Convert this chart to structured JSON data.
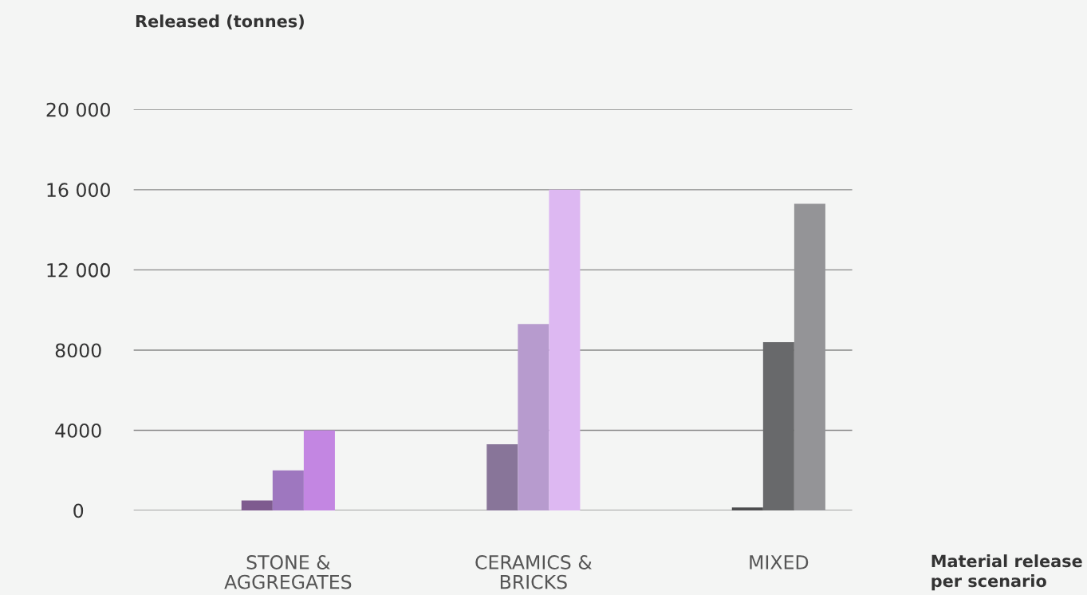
{
  "chart_data": {
    "type": "bar",
    "ylabel": "Released (tonnes)",
    "xlabel": "Material release\nper scenario",
    "categories": [
      "STONE &\nAGGREGATES",
      "CERAMICS &\nBRICKS",
      "MIXED"
    ],
    "series": [
      {
        "colors": [
          "#7e5b8f",
          "#887599",
          "#4d4d4f"
        ],
        "values": [
          500,
          3300,
          150
        ]
      },
      {
        "colors": [
          "#9e77bf",
          "#b79bce",
          "#68696b"
        ],
        "values": [
          2000,
          9300,
          8400
        ]
      },
      {
        "colors": [
          "#c386e2",
          "#ddb8f2",
          "#949497"
        ],
        "values": [
          4000,
          16000,
          15300
        ]
      }
    ],
    "ylim": [
      0,
      20000
    ],
    "yticks": [
      0,
      4000,
      8000,
      {
        "value": 12000,
        "label": "12 000"
      },
      {
        "value": 16000,
        "label": "16 000"
      },
      {
        "value": 20000,
        "label": "20 000"
      }
    ],
    "grid": "y",
    "legend": false
  }
}
